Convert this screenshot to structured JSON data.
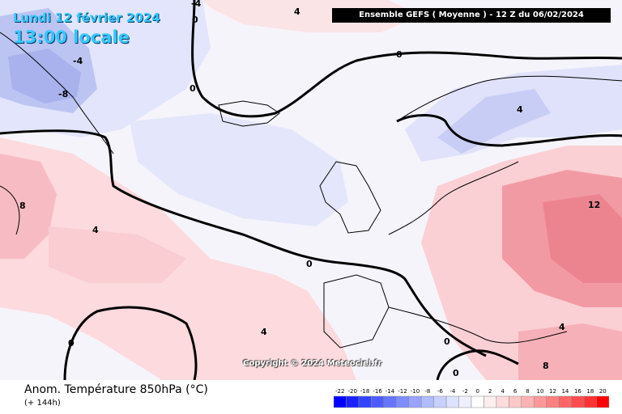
{
  "header": {
    "date": "Lundi 12 février 2024",
    "local_time": "13:00 locale",
    "model_title": "Ensemble GEFS  ( Moyenne )  -  12 Z du 06/02/2024"
  },
  "copyright": "Copyright © 2024 Meteociel.fr",
  "footer": {
    "variable": "Anom. Température 850hPa (°C)",
    "lead_time": "(+ 144h)"
  },
  "color_scale": {
    "values": [
      "-22",
      "-20",
      "-18",
      "-16",
      "-14",
      "-12",
      "-10",
      "-8",
      "-6",
      "-4",
      "-2",
      "0",
      "2",
      "4",
      "6",
      "8",
      "10",
      "12",
      "14",
      "16",
      "18",
      "20"
    ],
    "colors": [
      "#0000ff",
      "#1a22ff",
      "#3344ff",
      "#4d5cff",
      "#6675ff",
      "#7f8dff",
      "#98a4ff",
      "#b1bcff",
      "#c8d0ff",
      "#dde2ff",
      "#eef0ff",
      "#ffffff",
      "#ffeeee",
      "#ffdcdc",
      "#ffc8c8",
      "#ffb2b2",
      "#ff9999",
      "#ff8080",
      "#ff6666",
      "#ff4d4d",
      "#ff3333",
      "#ff0000"
    ]
  },
  "map": {
    "contour_labels": [
      {
        "text": "0"
      },
      {
        "text": "0"
      },
      {
        "text": "0"
      },
      {
        "text": "0"
      },
      {
        "text": "0"
      },
      {
        "text": "-4"
      },
      {
        "text": "-4"
      },
      {
        "text": "-8"
      },
      {
        "text": "4"
      },
      {
        "text": "4"
      },
      {
        "text": "4"
      },
      {
        "text": "8"
      },
      {
        "text": "12"
      },
      {
        "text": "4"
      },
      {
        "text": "8"
      },
      {
        "text": "0"
      },
      {
        "text": "0"
      },
      {
        "text": "4"
      }
    ]
  }
}
